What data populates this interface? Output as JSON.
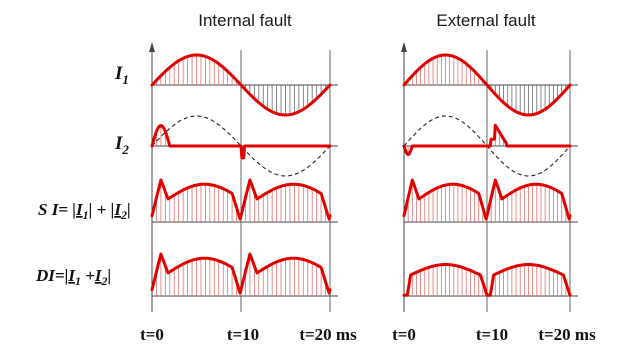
{
  "titles": {
    "internal": "Internal fault",
    "external": "External fault"
  },
  "row_labels": {
    "i1": {
      "main": "I",
      "sub": "1"
    },
    "i2": {
      "main": "I",
      "sub": "2"
    },
    "sum": {
      "prefix": "S I= |",
      "a": "I",
      "a_sub": "1",
      "mid": "| + |",
      "b": "I",
      "b_sub": "2",
      "end": "|"
    },
    "diff": {
      "prefix": "DI=|",
      "a": "I",
      "a_sub": "1",
      "mid": " +",
      "b": "I",
      "b_sub": "2",
      "end": "|"
    }
  },
  "time_labels": {
    "internal": [
      "t=0",
      "t=10",
      "t=20 ms"
    ],
    "external": [
      "t=0",
      "t=10",
      "t=20 ms"
    ]
  },
  "colors": {
    "signal": "#e00000",
    "hatch": "#e07070",
    "axis": "#444444"
  }
}
